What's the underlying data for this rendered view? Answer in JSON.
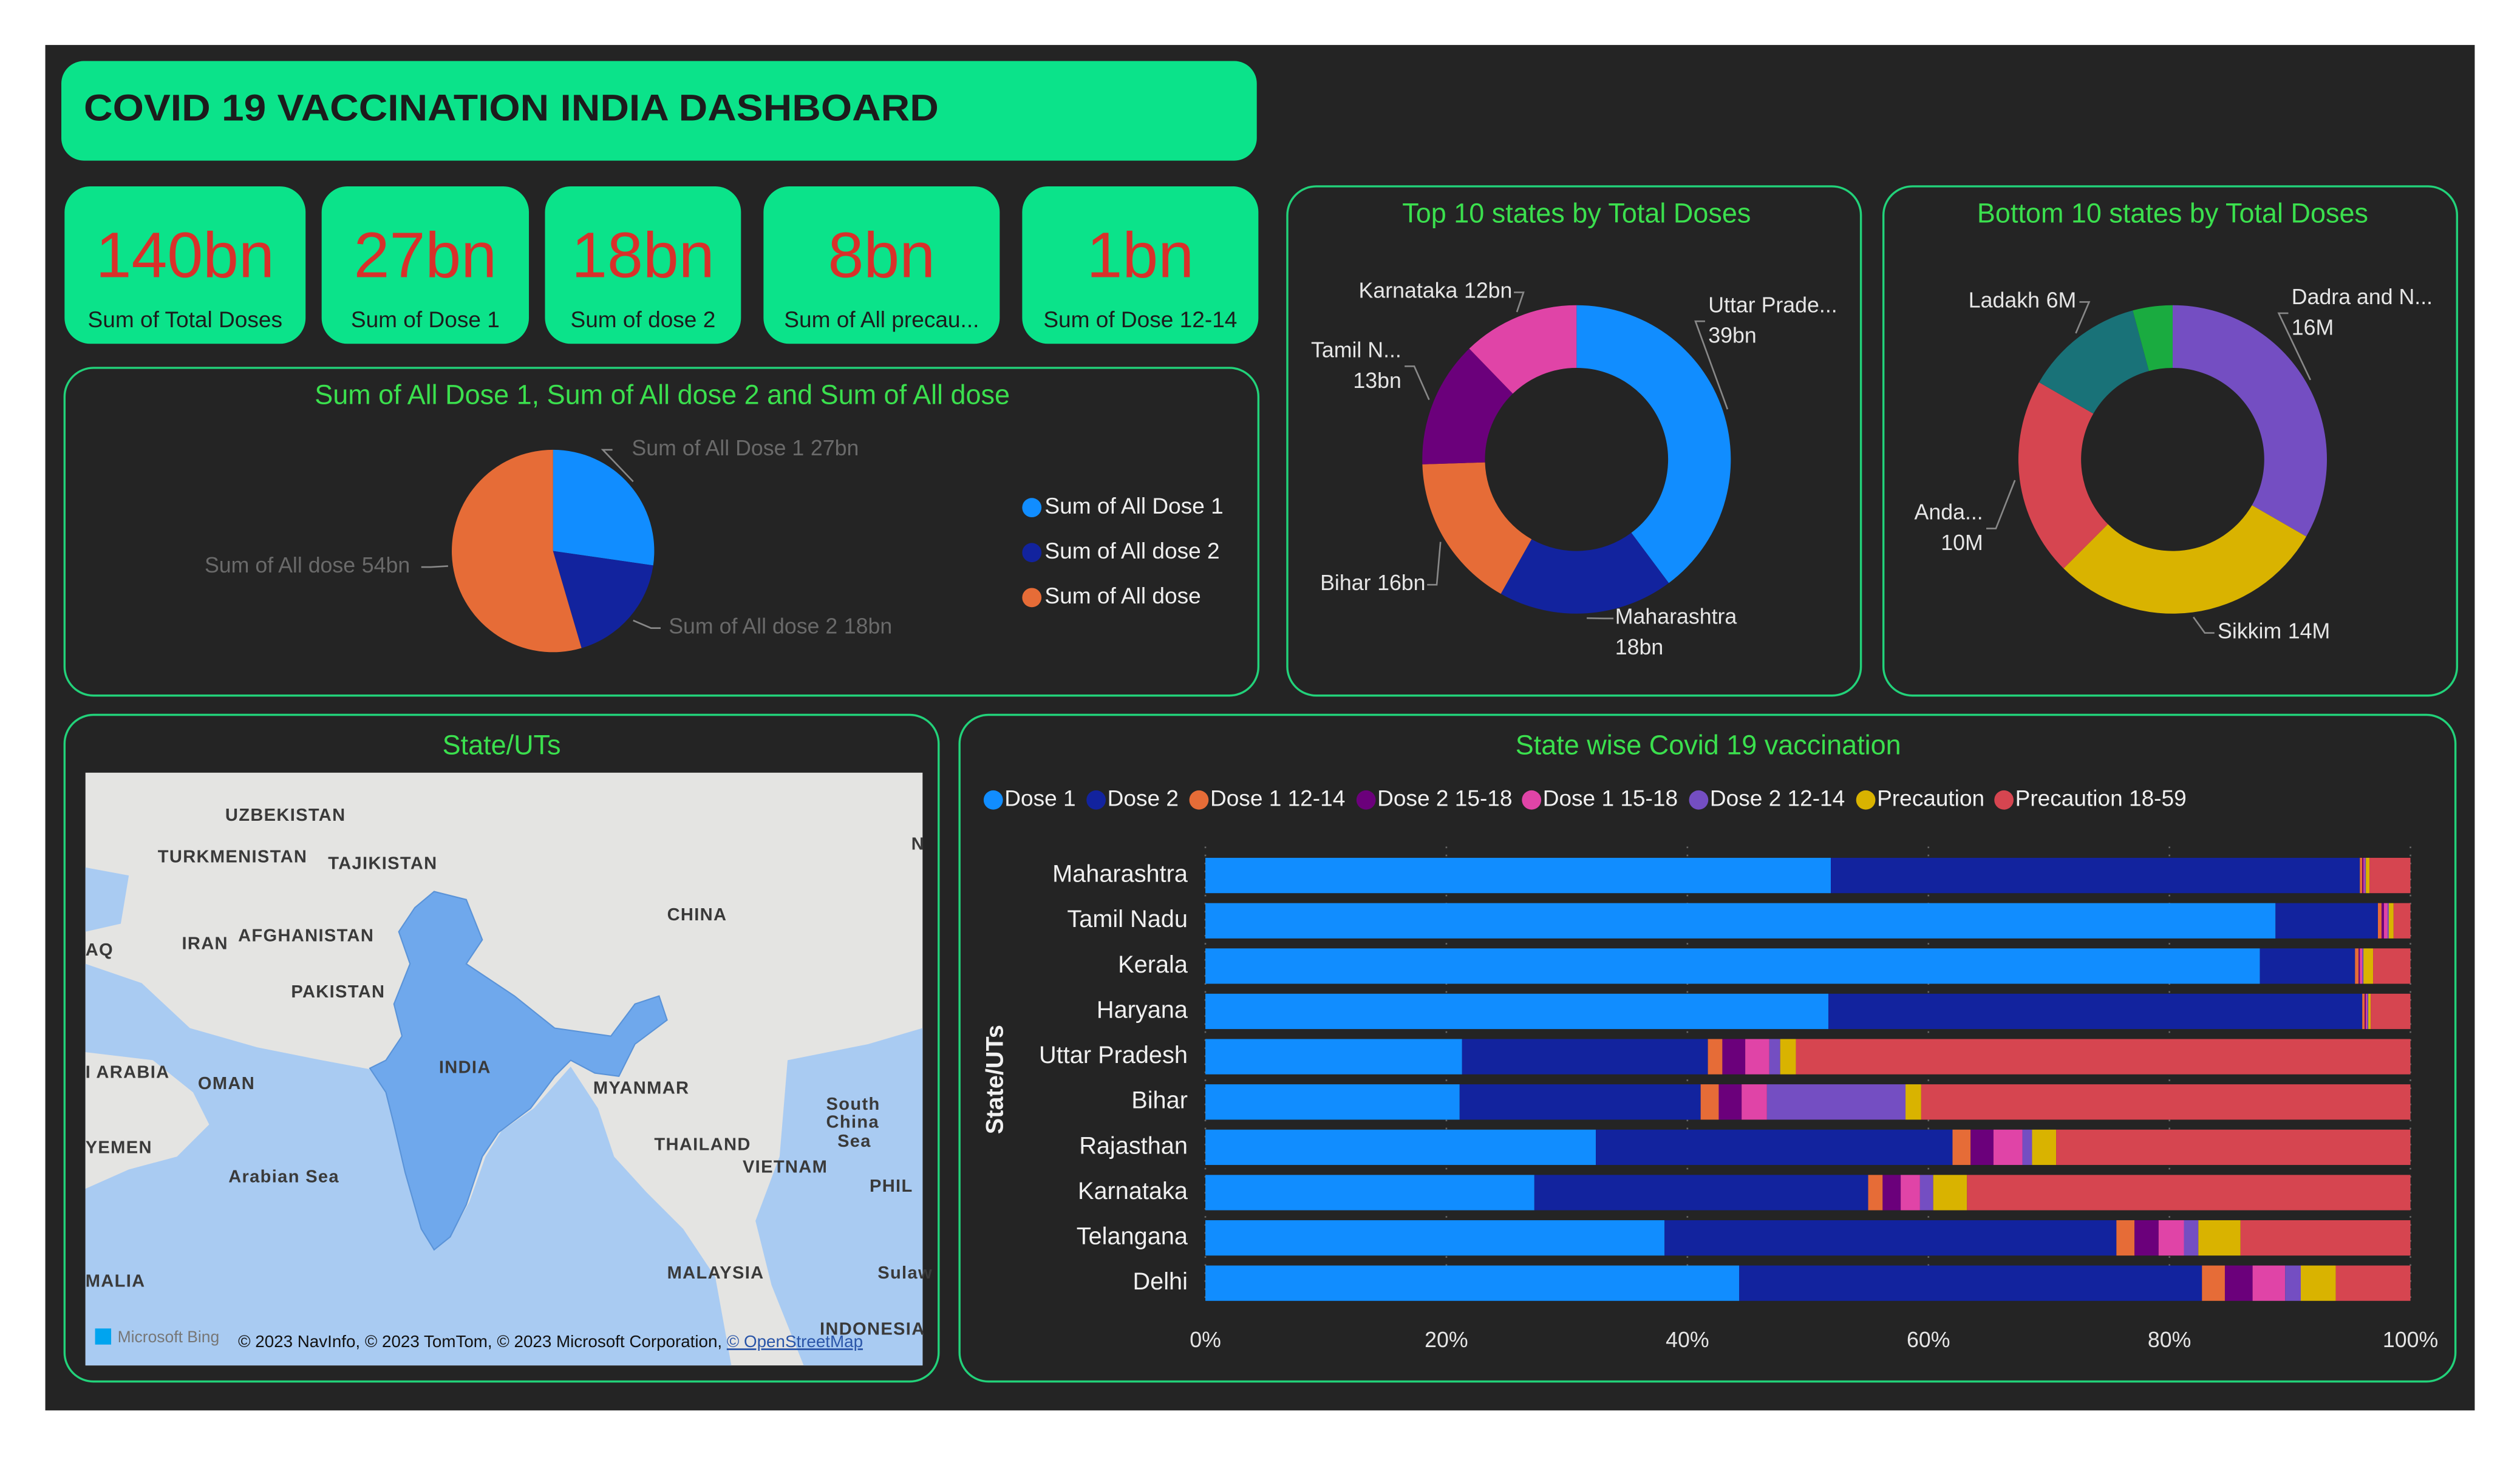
{
  "header": {
    "title": "COVID 19 VACCINATION INDIA DASHBOARD"
  },
  "kpis": [
    {
      "value": "140bn",
      "label": "Sum of Total Doses"
    },
    {
      "value": "27bn",
      "label": "Sum of Dose 1"
    },
    {
      "value": "18bn",
      "label": "Sum of dose 2"
    },
    {
      "value": "8bn",
      "label": "Sum of All precau..."
    },
    {
      "value": "1bn",
      "label": "Sum of Dose 12-14"
    }
  ],
  "map": {
    "title": "State/UTs",
    "labels": [
      "UZBEKISTAN",
      "TURKMENISTAN",
      "TAJIKISTAN",
      "IRAN",
      "AFGHANISTAN",
      "CHINA",
      "AQ",
      "PAKISTAN",
      "INDIA",
      "I ARABIA",
      "OMAN",
      "MYANMAR",
      "YEMEN",
      "Arabian Sea",
      "THAILAND",
      "VIETNAM",
      "South",
      "China",
      "Sea",
      "PHIL",
      "MALIA",
      "MALAYSIA",
      "INDONESIA",
      "N",
      "Sulaw"
    ],
    "credit": {
      "logo": "Microsoft Bing",
      "text": "© 2023 NavInfo, © 2023 TomTom, © 2023 Microsoft Corporation, ",
      "link": "© OpenStreetMap"
    }
  },
  "chart_data": [
    {
      "type": "pie",
      "title": "Sum of All Dose 1, Sum of All dose 2 and Sum of All dose",
      "categories": [
        "Sum of All Dose 1",
        "Sum of All dose 2",
        "Sum of All dose"
      ],
      "values": [
        27,
        18,
        54
      ],
      "value_labels": [
        "27bn",
        "18bn",
        "54bn"
      ],
      "colors": [
        "#118DFF",
        "#12239E",
        "#E66C37"
      ],
      "legend": "right"
    },
    {
      "type": "donut",
      "title": "Top 10 states by Total Doses",
      "categories": [
        "Uttar Prade...",
        "Maharashtra",
        "Bihar",
        "Tamil N...",
        "Karnataka"
      ],
      "values": [
        39,
        18,
        16,
        13,
        12
      ],
      "value_labels": [
        "39bn",
        "18bn",
        "16bn",
        "13bn",
        "12bn"
      ],
      "colors": [
        "#118DFF",
        "#12239E",
        "#E66C37",
        "#6B007B",
        "#E044A7"
      ]
    },
    {
      "type": "donut",
      "title": "Bottom 10 states by Total Doses",
      "categories": [
        "Dadra and N...",
        "Sikkim",
        "Anda...",
        "Ladakh",
        null
      ],
      "values": [
        16,
        14,
        10,
        6,
        2
      ],
      "value_labels": [
        "16M",
        "14M",
        "10M",
        "6M",
        null
      ],
      "colors": [
        "#744EC2",
        "#D9B300",
        "#D64550",
        "#197278",
        "#1AAB40"
      ]
    },
    {
      "type": "bar",
      "orientation": "horizontal",
      "stacked": "percent",
      "title": "State wise Covid 19 vaccination",
      "y_label": "State/UTs",
      "legend": "top",
      "grid": true,
      "categories": [
        "Maharashtra",
        "Tamil Nadu",
        "Kerala",
        "Haryana",
        "Uttar Pradesh",
        "Bihar",
        "Rajasthan",
        "Karnataka",
        "Telangana",
        "Delhi"
      ],
      "series": [
        {
          "name": "Dose 1",
          "color": "#118DFF",
          "values": [
            51.9,
            88.8,
            87.5,
            51.7,
            21.3,
            21.1,
            32.4,
            27.3,
            38.1,
            44.3
          ]
        },
        {
          "name": "Dose 2",
          "color": "#12239E",
          "values": [
            43.9,
            8.5,
            7.9,
            44.3,
            20.4,
            20.0,
            29.6,
            27.7,
            37.5,
            38.4
          ]
        },
        {
          "name": "Dose 1 12-14",
          "color": "#E66C37",
          "values": [
            0.2,
            0.3,
            0.3,
            0.2,
            1.2,
            1.5,
            1.5,
            1.2,
            1.5,
            1.9
          ]
        },
        {
          "name": "Dose 2 15-18",
          "color": "#6B007B",
          "values": [
            0.1,
            0.2,
            0.1,
            0.1,
            1.9,
            1.9,
            1.9,
            1.5,
            2.0,
            2.3
          ]
        },
        {
          "name": "Dose 1 15-18",
          "color": "#E044A7",
          "values": [
            0.1,
            0.3,
            0.2,
            0.1,
            2.0,
            2.1,
            2.4,
            1.6,
            2.1,
            2.7
          ]
        },
        {
          "name": "Dose 2 12-14",
          "color": "#744EC2",
          "values": [
            0.1,
            0.1,
            0.1,
            0.1,
            0.9,
            11.5,
            0.8,
            1.1,
            1.2,
            1.3
          ]
        },
        {
          "name": "Precaution",
          "color": "#D9B300",
          "values": [
            0.3,
            0.4,
            0.8,
            0.2,
            1.3,
            1.3,
            2.0,
            2.8,
            3.5,
            2.9
          ]
        },
        {
          "name": "Precaution 18-59",
          "color": "#D64550",
          "values": [
            3.4,
            1.4,
            3.1,
            3.3,
            51.0,
            40.6,
            29.4,
            36.8,
            14.1,
            6.2
          ]
        }
      ],
      "xlim": [
        0,
        100
      ],
      "xticks": [
        {
          "value": 0,
          "label": "0%"
        },
        {
          "value": 20,
          "label": "20%"
        },
        {
          "value": 40,
          "label": "40%"
        },
        {
          "value": 60,
          "label": "60%"
        },
        {
          "value": 80,
          "label": "80%"
        },
        {
          "value": 100,
          "label": "100%"
        }
      ]
    }
  ]
}
